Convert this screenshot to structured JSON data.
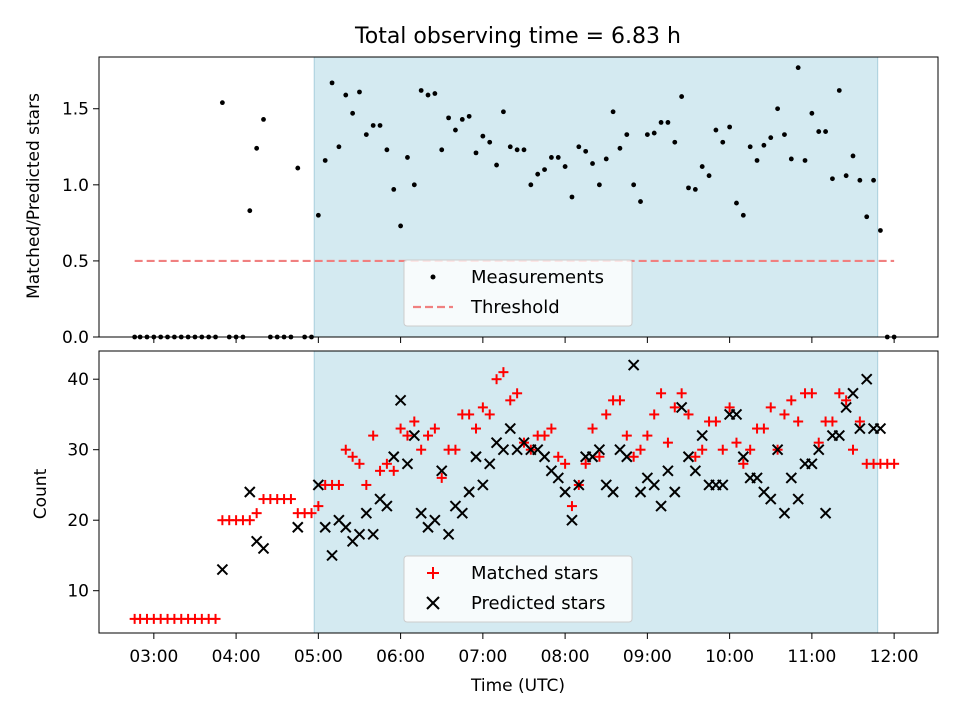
{
  "chart_data": [
    {
      "type": "scatter",
      "title": "Total observing time = 6.83 h",
      "xlabel": "",
      "ylabel": "Matched/Predicted stars",
      "xlim": [
        "02:20",
        "12:32"
      ],
      "ylim": [
        0,
        1.84
      ],
      "yticks": [
        0.0,
        0.5,
        1.0,
        1.5
      ],
      "yticklabels": [
        "0.0",
        "0.5",
        "1.0",
        "1.5"
      ],
      "shaded_interval": [
        "04:57",
        "11:48"
      ],
      "shaded_color": "#d4eaf1",
      "legend_loc": "lower center",
      "series": [
        {
          "name": "Measurements",
          "marker": "dot",
          "color": "#000000",
          "x": [
            "02:46",
            "02:50",
            "02:55",
            "03:00",
            "03:05",
            "03:10",
            "03:15",
            "03:20",
            "03:25",
            "03:30",
            "03:35",
            "03:40",
            "03:45",
            "03:50",
            "03:55",
            "04:00",
            "04:05",
            "04:10",
            "04:15",
            "04:20",
            "04:25",
            "04:30",
            "04:35",
            "04:40",
            "04:45",
            "04:50",
            "04:55",
            "05:00",
            "05:05",
            "05:10",
            "05:15",
            "05:20",
            "05:25",
            "05:30",
            "05:35",
            "05:40",
            "05:45",
            "05:50",
            "05:55",
            "06:00",
            "06:05",
            "06:10",
            "06:15",
            "06:20",
            "06:25",
            "06:30",
            "06:35",
            "06:40",
            "06:45",
            "06:50",
            "06:55",
            "07:00",
            "07:05",
            "07:10",
            "07:15",
            "07:20",
            "07:25",
            "07:30",
            "07:35",
            "07:40",
            "07:45",
            "07:50",
            "07:55",
            "08:00",
            "08:05",
            "08:10",
            "08:15",
            "08:20",
            "08:25",
            "08:30",
            "08:35",
            "08:40",
            "08:45",
            "08:50",
            "08:55",
            "09:00",
            "09:05",
            "09:10",
            "09:15",
            "09:20",
            "09:25",
            "09:30",
            "09:35",
            "09:40",
            "09:45",
            "09:50",
            "09:55",
            "10:00",
            "10:05",
            "10:10",
            "10:15",
            "10:20",
            "10:25",
            "10:30",
            "10:35",
            "10:40",
            "10:45",
            "10:50",
            "10:55",
            "11:00",
            "11:05",
            "11:10",
            "11:15",
            "11:20",
            "11:25",
            "11:30",
            "11:35",
            "11:40",
            "11:45",
            "11:50",
            "11:55",
            "12:00"
          ],
          "y": [
            0.0,
            0.0,
            0.0,
            0.0,
            0.0,
            0.0,
            0.0,
            0.0,
            0.0,
            0.0,
            0.0,
            0.0,
            0.0,
            1.54,
            0.0,
            0.0,
            0.0,
            0.83,
            1.24,
            1.43,
            0.0,
            0.0,
            0.0,
            0.0,
            1.11,
            0.0,
            0.0,
            0.8,
            1.16,
            1.67,
            1.25,
            1.59,
            1.47,
            1.61,
            1.33,
            1.39,
            1.39,
            1.23,
            0.97,
            0.73,
            1.18,
            1.0,
            1.62,
            1.59,
            1.6,
            1.23,
            1.44,
            1.36,
            1.43,
            1.45,
            1.21,
            1.32,
            1.28,
            1.13,
            1.48,
            1.25,
            1.23,
            1.23,
            1.0,
            1.07,
            1.1,
            1.18,
            1.18,
            1.12,
            0.92,
            1.25,
            1.22,
            1.14,
            1.0,
            1.17,
            1.48,
            1.24,
            1.33,
            1.0,
            0.89,
            1.33,
            1.34,
            1.41,
            1.41,
            1.28,
            1.58,
            0.98,
            0.97,
            1.12,
            1.06,
            1.36,
            1.28,
            1.38,
            0.88,
            0.8,
            1.25,
            1.16,
            1.26,
            1.31,
            1.5,
            1.33,
            1.17,
            1.77,
            1.16,
            1.47,
            1.35,
            1.35,
            1.04,
            1.62,
            1.06,
            1.19,
            1.03,
            0.79,
            1.03,
            0.7,
            0.0,
            0.0
          ]
        },
        {
          "name": "Threshold",
          "marker": "dashed-line",
          "color": "#f08080",
          "x": [
            "02:46",
            "12:00"
          ],
          "y": [
            0.5,
            0.5
          ]
        }
      ]
    },
    {
      "type": "scatter",
      "title": "",
      "xlabel": "Time (UTC)",
      "ylabel": "Count",
      "xlim": [
        "02:20",
        "12:32"
      ],
      "ylim": [
        4,
        44
      ],
      "yticks": [
        10,
        20,
        30,
        40
      ],
      "yticklabels": [
        "10",
        "20",
        "30",
        "40"
      ],
      "xticks": [
        "03:00",
        "04:00",
        "05:00",
        "06:00",
        "07:00",
        "08:00",
        "09:00",
        "10:00",
        "11:00",
        "12:00"
      ],
      "shaded_interval": [
        "04:57",
        "11:48"
      ],
      "shaded_color": "#d4eaf1",
      "legend_loc": "lower center",
      "series": [
        {
          "name": "Matched stars",
          "marker": "plus",
          "color": "#ff0000",
          "x": [
            "02:46",
            "02:50",
            "02:55",
            "03:00",
            "03:05",
            "03:10",
            "03:15",
            "03:20",
            "03:25",
            "03:30",
            "03:35",
            "03:40",
            "03:45",
            "03:50",
            "03:55",
            "04:00",
            "04:05",
            "04:10",
            "04:15",
            "04:20",
            "04:25",
            "04:30",
            "04:35",
            "04:40",
            "04:45",
            "04:50",
            "04:55",
            "05:00",
            "05:05",
            "05:10",
            "05:15",
            "05:20",
            "05:25",
            "05:30",
            "05:35",
            "05:40",
            "05:45",
            "05:50",
            "05:55",
            "06:00",
            "06:05",
            "06:10",
            "06:15",
            "06:20",
            "06:25",
            "06:30",
            "06:35",
            "06:40",
            "06:45",
            "06:50",
            "06:55",
            "07:00",
            "07:05",
            "07:10",
            "07:15",
            "07:20",
            "07:25",
            "07:30",
            "07:35",
            "07:40",
            "07:45",
            "07:50",
            "07:55",
            "08:00",
            "08:05",
            "08:10",
            "08:15",
            "08:20",
            "08:25",
            "08:30",
            "08:35",
            "08:40",
            "08:45",
            "08:50",
            "08:55",
            "09:00",
            "09:05",
            "09:10",
            "09:15",
            "09:20",
            "09:25",
            "09:30",
            "09:35",
            "09:40",
            "09:45",
            "09:50",
            "09:55",
            "10:00",
            "10:05",
            "10:10",
            "10:15",
            "10:20",
            "10:25",
            "10:30",
            "10:35",
            "10:40",
            "10:45",
            "10:50",
            "10:55",
            "11:00",
            "11:05",
            "11:10",
            "11:15",
            "11:20",
            "11:25",
            "11:30",
            "11:35",
            "11:40",
            "11:45",
            "11:50",
            "11:55",
            "12:00"
          ],
          "y": [
            6,
            6,
            6,
            6,
            6,
            6,
            6,
            6,
            6,
            6,
            6,
            6,
            6,
            20,
            20,
            20,
            20,
            20,
            21,
            23,
            23,
            23,
            23,
            23,
            21,
            21,
            21,
            22,
            25,
            25,
            25,
            30,
            29,
            28,
            25,
            32,
            27,
            28,
            27,
            33,
            32,
            34,
            30,
            32,
            33,
            26,
            30,
            30,
            35,
            35,
            33,
            36,
            35,
            40,
            41,
            37,
            38,
            31,
            30,
            32,
            32,
            33,
            29,
            28,
            22,
            25,
            28,
            33,
            29,
            35,
            37,
            37,
            32,
            29,
            30,
            32,
            35,
            38,
            31,
            36,
            38,
            35,
            29,
            30,
            34,
            34,
            30,
            36,
            31,
            28,
            30,
            33,
            33,
            36,
            30,
            35,
            37,
            34,
            38,
            38,
            31,
            34,
            34,
            38,
            37,
            30,
            34,
            28,
            28,
            28,
            28,
            28
          ]
        },
        {
          "name": "Predicted stars",
          "marker": "x",
          "color": "#000000",
          "x": [
            "03:50",
            "04:10",
            "04:15",
            "04:20",
            "04:45",
            "05:00",
            "05:05",
            "05:10",
            "05:15",
            "05:20",
            "05:25",
            "05:30",
            "05:35",
            "05:40",
            "05:45",
            "05:50",
            "05:55",
            "06:00",
            "06:05",
            "06:10",
            "06:15",
            "06:20",
            "06:25",
            "06:30",
            "06:35",
            "06:40",
            "06:45",
            "06:50",
            "06:55",
            "07:00",
            "07:05",
            "07:10",
            "07:15",
            "07:20",
            "07:25",
            "07:30",
            "07:35",
            "07:40",
            "07:45",
            "07:50",
            "07:55",
            "08:00",
            "08:05",
            "08:10",
            "08:15",
            "08:20",
            "08:25",
            "08:30",
            "08:35",
            "08:40",
            "08:45",
            "08:50",
            "08:55",
            "09:00",
            "09:05",
            "09:10",
            "09:15",
            "09:20",
            "09:25",
            "09:30",
            "09:35",
            "09:40",
            "09:45",
            "09:50",
            "09:55",
            "10:00",
            "10:05",
            "10:10",
            "10:15",
            "10:20",
            "10:25",
            "10:30",
            "10:35",
            "10:40",
            "10:45",
            "10:50",
            "10:55",
            "11:00",
            "11:05",
            "11:10",
            "11:15",
            "11:20",
            "11:25",
            "11:30",
            "11:35",
            "11:40",
            "11:45",
            "11:50"
          ],
          "y": [
            13,
            24,
            17,
            16,
            19,
            25,
            19,
            15,
            20,
            19,
            17,
            18,
            21,
            18,
            23,
            22,
            29,
            37,
            28,
            32,
            21,
            19,
            20,
            27,
            18,
            22,
            21,
            24,
            29,
            25,
            28,
            31,
            30,
            33,
            30,
            31,
            30,
            30,
            29,
            27,
            26,
            24,
            20,
            25,
            29,
            29,
            30,
            25,
            24,
            30,
            29,
            42,
            24,
            26,
            25,
            22,
            27,
            24,
            36,
            29,
            27,
            32,
            25,
            25,
            25,
            35,
            35,
            29,
            26,
            26,
            24,
            23,
            30,
            21,
            26,
            23,
            28,
            28,
            30,
            21,
            32,
            32,
            36,
            38,
            33,
            40,
            33,
            33
          ]
        }
      ]
    }
  ]
}
